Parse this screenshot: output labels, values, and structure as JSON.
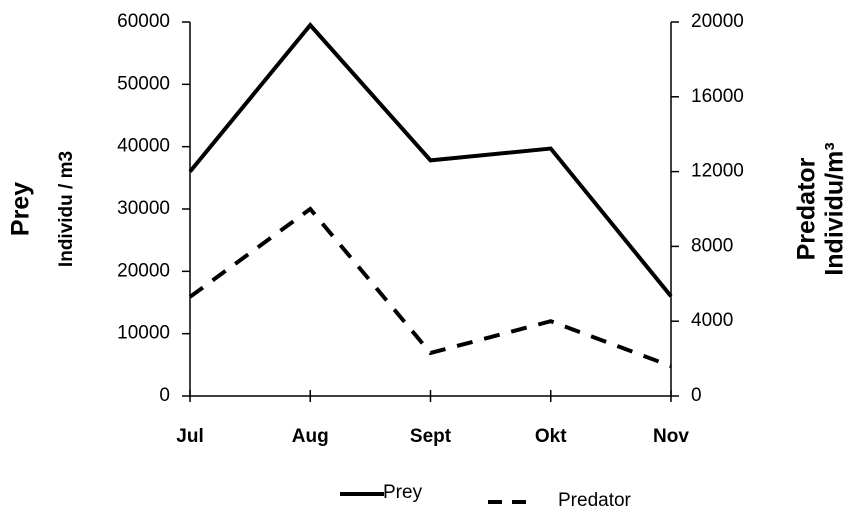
{
  "chart_data": {
    "type": "line",
    "y_label": "Prey",
    "y_sublabel": "Individu / m3",
    "y2_label": "Predator",
    "y2_sublabel": "Individu/m³",
    "categories": [
      "Jul",
      "Aug",
      "Sept",
      "Okt",
      "Nov"
    ],
    "series": [
      {
        "name": "Prey",
        "color": "#000000",
        "style": "solid",
        "values": [
          36000,
          59500,
          37800,
          39700,
          16000
        ]
      },
      {
        "name": "Predator",
        "color": "#000000",
        "style": "dashed",
        "axis": "y2",
        "values": [
          5300,
          10000,
          2300,
          4000,
          1600
        ]
      }
    ],
    "ylim": [
      0,
      60000
    ],
    "yticks": [
      0,
      10000,
      20000,
      30000,
      40000,
      50000,
      60000
    ],
    "y2lim": [
      0,
      20000
    ],
    "y2ticks": [
      0,
      4000,
      8000,
      12000,
      16000,
      20000
    ],
    "legend": "bottom"
  }
}
